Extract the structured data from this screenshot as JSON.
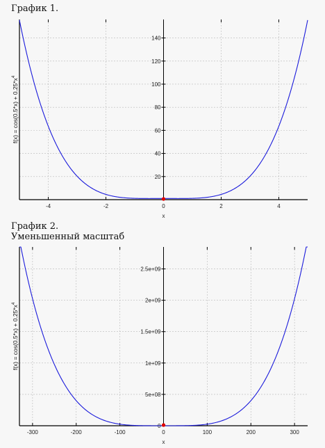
{
  "headings": {
    "chart1": "График 1.",
    "chart2_line1": "График 2.",
    "chart2_line2": "Уменьшенный масштаб"
  },
  "chart_data": [
    {
      "type": "line",
      "title": "График 1.",
      "xlabel": "x",
      "ylabel": "f(x) = cos(0.5*x) + 0.25*x^4",
      "function": "cos(0.5*x)+0.25*x^4",
      "xlim": [
        -5,
        5
      ],
      "ylim": [
        0,
        156
      ],
      "x_ticks": [
        -4,
        -2,
        0,
        2,
        4
      ],
      "x_tick_labels": [
        "-4",
        "-2",
        "0",
        "2",
        "4"
      ],
      "y_ticks": [
        20,
        40,
        60,
        80,
        100,
        120,
        140
      ],
      "y_tick_labels": [
        "20",
        "40",
        "60",
        "80",
        "100",
        "120",
        "140"
      ],
      "grid": true,
      "line_color": "#1a1adb",
      "marker": {
        "x": 0,
        "y": 1,
        "color": "#e00000"
      },
      "series": [
        {
          "x": [
            -5,
            -4.5,
            -4,
            -3.5,
            -3,
            -2.5,
            -2,
            -1.5,
            -1,
            -0.5,
            0,
            0.5,
            1,
            1.5,
            2,
            2.5,
            3,
            3.5,
            4,
            4.5,
            5
          ],
          "y": [
            157.05,
            103.15,
            63.58,
            37.69,
            20.32,
            10.08,
            4.54,
            2.0,
            1.13,
            0.99,
            1.0,
            0.99,
            1.13,
            2.0,
            4.54,
            10.08,
            20.32,
            37.69,
            63.58,
            103.15,
            157.05
          ]
        }
      ]
    },
    {
      "type": "line",
      "title": "График 2. Уменьшенный масштаб",
      "xlabel": "x",
      "ylabel": "f(x) = cos(0.5*x) + 0.25*x^4",
      "function": "cos(0.5*x)+0.25*x^4",
      "xlim": [
        -330,
        330
      ],
      "ylim": [
        0,
        2850000000.0
      ],
      "x_ticks": [
        -300,
        -200,
        -100,
        0,
        100,
        200,
        300
      ],
      "x_tick_labels": [
        "-300",
        "-200",
        "-100",
        "0",
        "100",
        "200",
        "300"
      ],
      "y_ticks": [
        0,
        500000000,
        1000000000,
        1500000000,
        2000000000,
        2500000000
      ],
      "y_tick_labels": [
        "0",
        "5e+08",
        "1e+09",
        "1.5e+09",
        "2e+09",
        "2.5e+09"
      ],
      "grid": true,
      "line_color": "#1a1adb",
      "marker": {
        "x": 0,
        "y": 1,
        "color": "#e00000"
      },
      "series": [
        {
          "x": [
            -325,
            -300,
            -250,
            -200,
            -150,
            -100,
            -50,
            0,
            50,
            100,
            150,
            200,
            250,
            300,
            325
          ],
          "y": [
            2790000000.0,
            2025000000.0,
            977000000.0,
            400000000.0,
            127000000.0,
            25000000.0,
            1560000.0,
            1,
            1560000.0,
            25000000.0,
            127000000.0,
            400000000.0,
            977000000.0,
            2025000000.0,
            2790000000.0
          ]
        }
      ]
    }
  ]
}
